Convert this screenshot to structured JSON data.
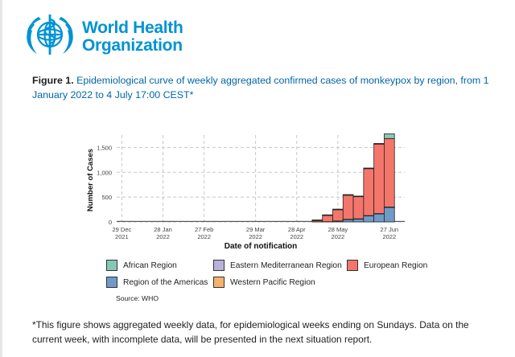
{
  "header": {
    "org_line1": "World Health",
    "org_line2": "Organization",
    "logo_label": "WHO emblem"
  },
  "caption": {
    "figure_label": "Figure 1.",
    "text": "Epidemiological curve of weekly aggregated confirmed cases of monkeypox by region, from 1 January 2022 to 4 July 17:00 CEST*"
  },
  "chart_data": {
    "type": "bar",
    "stacked": true,
    "title": "",
    "xlabel": "Date of notification",
    "ylabel": "Number of Cases",
    "ylim": [
      0,
      1750
    ],
    "yticks": [
      0,
      500,
      1000,
      1500
    ],
    "ytick_labels": [
      "0",
      "500",
      "1,000",
      "1,500"
    ],
    "xtick_labels": [
      {
        "date": "29 Dec",
        "year": "2021",
        "week": 0
      },
      {
        "date": "28 Jan",
        "year": "2022",
        "week": 4
      },
      {
        "date": "27 Feb",
        "year": "2022",
        "week": 8
      },
      {
        "date": "29 Mar",
        "year": "2022",
        "week": 13
      },
      {
        "date": "28 Apr",
        "year": "2022",
        "week": 17
      },
      {
        "date": "28 May",
        "year": "2022",
        "week": 21
      },
      {
        "date": "27 Jun",
        "year": "2022",
        "week": 26
      }
    ],
    "week_range": [
      -0.5,
      27.5
    ],
    "grid": true,
    "weeks": [
      0,
      1,
      2,
      3,
      4,
      5,
      6,
      7,
      8,
      9,
      10,
      11,
      12,
      13,
      14,
      15,
      16,
      17,
      18,
      19,
      20,
      21,
      22,
      23,
      24,
      25,
      26,
      27
    ],
    "series": [
      {
        "name": "Region of the Americas",
        "color": "#6f9bc9",
        "values": [
          0,
          0,
          0,
          0,
          0,
          0,
          0,
          0,
          0,
          0,
          0,
          0,
          0,
          0,
          0,
          0,
          0,
          0,
          0,
          2,
          5,
          18,
          45,
          55,
          120,
          160,
          290,
          0
        ]
      },
      {
        "name": "Western Pacific Region",
        "color": "#f6b26b",
        "values": [
          0,
          0,
          0,
          0,
          0,
          0,
          0,
          0,
          0,
          0,
          0,
          0,
          0,
          0,
          0,
          0,
          0,
          0,
          0,
          0,
          0,
          0,
          3,
          3,
          3,
          3,
          5,
          0
        ]
      },
      {
        "name": "Eastern Mediterranean Region",
        "color": "#b9b3d9",
        "values": [
          0,
          0,
          0,
          0,
          0,
          0,
          0,
          0,
          0,
          0,
          0,
          0,
          0,
          0,
          0,
          0,
          0,
          0,
          0,
          0,
          0,
          2,
          5,
          5,
          5,
          5,
          5,
          0
        ]
      },
      {
        "name": "European Region",
        "color": "#f4766b",
        "values": [
          0,
          0,
          0,
          0,
          0,
          0,
          0,
          0,
          0,
          0,
          0,
          0,
          0,
          0,
          0,
          0,
          0,
          0,
          0,
          25,
          125,
          225,
          485,
          445,
          945,
          1400,
          1380,
          0
        ]
      },
      {
        "name": "African Region",
        "color": "#84c9b7",
        "values": [
          0,
          0,
          0,
          0,
          0,
          0,
          0,
          0,
          0,
          0,
          0,
          0,
          0,
          0,
          0,
          0,
          0,
          0,
          0,
          1,
          2,
          2,
          3,
          2,
          5,
          5,
          95,
          0
        ]
      }
    ]
  },
  "legend": {
    "items": [
      {
        "name": "African Region",
        "color": "#84c9b7"
      },
      {
        "name": "Eastern Mediterranean Region",
        "color": "#b9b3d9"
      },
      {
        "name": "European Region",
        "color": "#f4766b"
      },
      {
        "name": "Region of the Americas",
        "color": "#6f9bc9"
      },
      {
        "name": "Western Pacific Region",
        "color": "#f6b26b"
      }
    ]
  },
  "source": "Source: WHO",
  "footnote": "*This figure shows aggregated weekly data, for epidemiological weeks ending on Sundays. Data on the current week, with incomplete data, will be presented in the next situation report."
}
